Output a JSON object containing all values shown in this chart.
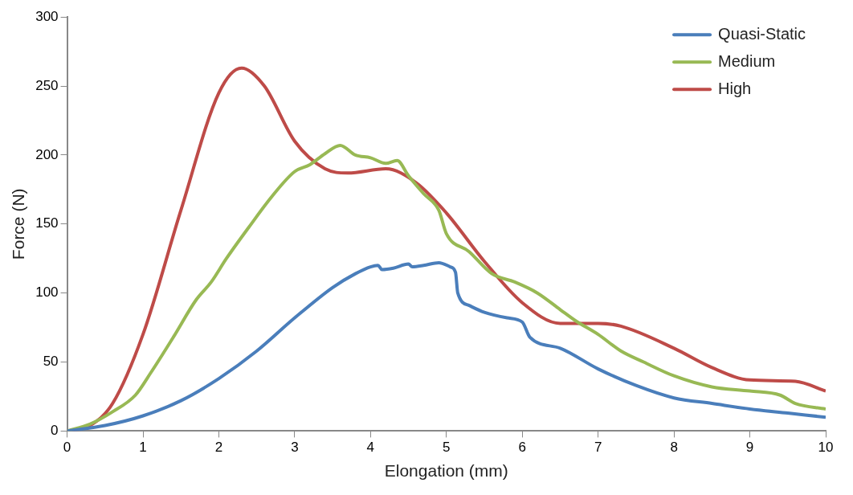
{
  "chart_data": {
    "type": "line",
    "xlabel": "Elongation (mm)",
    "ylabel": "Force (N)",
    "xlim": [
      0,
      10
    ],
    "xticks": [
      0,
      1,
      2,
      3,
      4,
      5,
      6,
      7,
      8,
      9,
      10
    ],
    "ylim": [
      0,
      300
    ],
    "yticks": [
      0,
      50,
      100,
      150,
      200,
      250,
      300
    ],
    "grid": false,
    "legend": "top right",
    "series": [
      {
        "name": "Quasi-Static",
        "color": "#4a7ebb",
        "x": [
          0,
          0.5,
          1,
          1.5,
          2,
          2.5,
          3,
          3.5,
          3.8,
          4,
          4.1,
          4.15,
          4.3,
          4.5,
          4.55,
          4.7,
          4.9,
          5.05,
          5.12,
          5.15,
          5.3,
          5.5,
          5.8,
          6,
          6.1,
          6.5,
          7,
          7.5,
          8,
          8.5,
          9,
          9.5,
          10
        ],
        "values": [
          0,
          4,
          11,
          22,
          38,
          58,
          82,
          104,
          114,
          119,
          120,
          117,
          118,
          121,
          119,
          120,
          122,
          119,
          115,
          100,
          91,
          86,
          82,
          79,
          68,
          60,
          45,
          33,
          24,
          20,
          16,
          13,
          10
        ]
      },
      {
        "name": "Medium",
        "color": "#98b954",
        "x": [
          0,
          0.3,
          0.6,
          0.9,
          1.1,
          1.4,
          1.7,
          1.9,
          2.1,
          2.4,
          2.7,
          3,
          3.2,
          3.4,
          3.6,
          3.8,
          4,
          4.2,
          4.35,
          4.5,
          4.7,
          4.9,
          5,
          5.3,
          5.6,
          5.9,
          6.2,
          6.5,
          6.7,
          7,
          7.3,
          7.6,
          8,
          8.5,
          9,
          9.4,
          9.6,
          10
        ],
        "values": [
          0,
          5,
          14,
          26,
          42,
          68,
          95,
          108,
          125,
          148,
          170,
          188,
          193,
          201,
          207,
          200,
          198,
          194,
          196,
          185,
          172,
          160,
          143,
          130,
          114,
          108,
          100,
          88,
          80,
          70,
          58,
          50,
          40,
          32,
          29,
          26,
          20,
          16
        ]
      },
      {
        "name": "High",
        "color": "#be4b48",
        "x": [
          0,
          0.3,
          0.6,
          1,
          1.5,
          2,
          2.3,
          2.6,
          3,
          3.4,
          3.7,
          4.2,
          4.6,
          5,
          5.5,
          6,
          6.5,
          7,
          7.3,
          8,
          8.5,
          9,
          9.6,
          10
        ],
        "values": [
          0,
          4,
          20,
          70,
          160,
          245,
          263,
          250,
          210,
          190,
          187,
          190,
          180,
          158,
          123,
          93,
          78,
          78,
          76,
          60,
          46,
          37,
          36,
          29
        ]
      }
    ]
  }
}
